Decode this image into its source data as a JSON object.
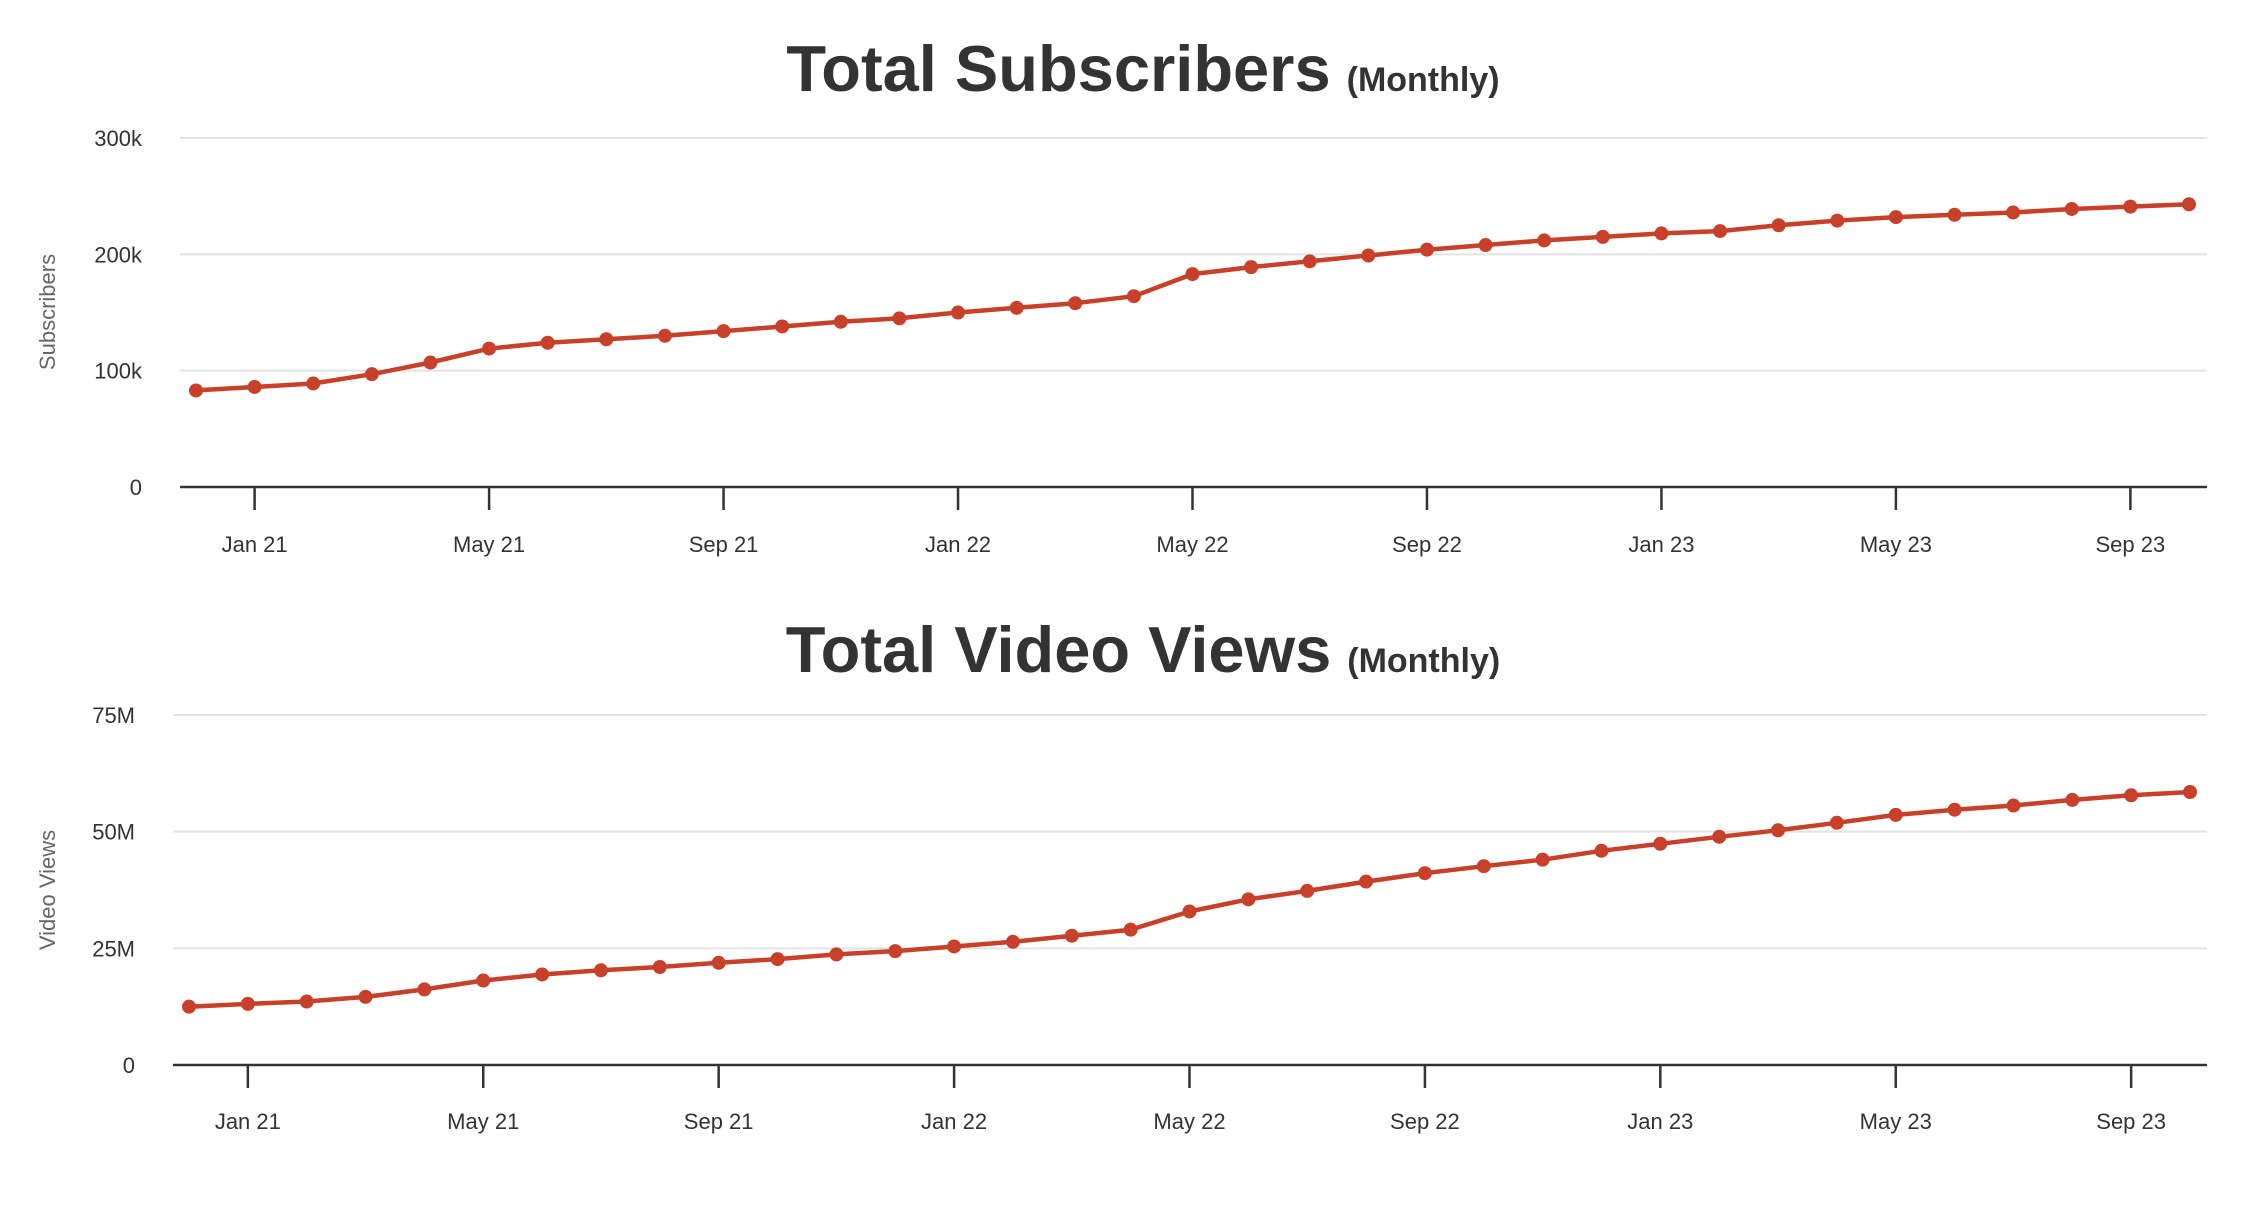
{
  "colors": {
    "series": "#c8402a",
    "grid": "#e3e3e3",
    "axis": "#333333",
    "text": "#333333"
  },
  "chart_data": [
    {
      "type": "line",
      "title": "Total Subscribers",
      "subtitle": "(Monthly)",
      "xlabel": "",
      "ylabel": "Subscribers",
      "x_ticks": [
        "Jan 21",
        "May 21",
        "Sep 21",
        "Jan 22",
        "May 22",
        "Sep 22",
        "Jan 23",
        "May 23",
        "Sep 23"
      ],
      "y_ticks": [
        {
          "value": 0,
          "label": "0"
        },
        {
          "value": 100000,
          "label": "100k"
        },
        {
          "value": 200000,
          "label": "200k"
        },
        {
          "value": 300000,
          "label": "300k"
        }
      ],
      "ylim": [
        0,
        300000
      ],
      "grid": true,
      "legend": "none",
      "series": [
        {
          "x": [
            "2020-12",
            "2021-01",
            "2021-02",
            "2021-03",
            "2021-04",
            "2021-05",
            "2021-06",
            "2021-07",
            "2021-08",
            "2021-09",
            "2021-10",
            "2021-11",
            "2021-12",
            "2022-01",
            "2022-02",
            "2022-03",
            "2022-04",
            "2022-05",
            "2022-06",
            "2022-07",
            "2022-08",
            "2022-09",
            "2022-10",
            "2022-11",
            "2022-12",
            "2023-01",
            "2023-02",
            "2023-03",
            "2023-04",
            "2023-05",
            "2023-06",
            "2023-07",
            "2023-08",
            "2023-09",
            "2023-10"
          ],
          "values": [
            83000,
            86000,
            89000,
            97000,
            107000,
            119000,
            124000,
            127000,
            130000,
            134000,
            138000,
            142000,
            145000,
            150000,
            154000,
            158000,
            164000,
            183000,
            189000,
            194000,
            199000,
            204000,
            208000,
            212000,
            215000,
            218000,
            220000,
            225000,
            229000,
            232000,
            234000,
            236000,
            239000,
            241000,
            243000
          ]
        }
      ]
    },
    {
      "type": "line",
      "title": "Total Video Views",
      "subtitle": "(Monthly)",
      "xlabel": "",
      "ylabel": "Video Views",
      "x_ticks": [
        "Jan 21",
        "May 21",
        "Sep 21",
        "Jan 22",
        "May 22",
        "Sep 22",
        "Jan 23",
        "May 23",
        "Sep 23"
      ],
      "y_ticks": [
        {
          "value": 0,
          "label": "0"
        },
        {
          "value": 25000000,
          "label": "25M"
        },
        {
          "value": 50000000,
          "label": "50M"
        },
        {
          "value": 75000000,
          "label": "75M"
        }
      ],
      "ylim": [
        0,
        75000000
      ],
      "grid": true,
      "legend": "none",
      "series": [
        {
          "x": [
            "2020-12",
            "2021-01",
            "2021-02",
            "2021-03",
            "2021-04",
            "2021-05",
            "2021-06",
            "2021-07",
            "2021-08",
            "2021-09",
            "2021-10",
            "2021-11",
            "2021-12",
            "2022-01",
            "2022-02",
            "2022-03",
            "2022-04",
            "2022-05",
            "2022-06",
            "2022-07",
            "2022-08",
            "2022-09",
            "2022-10",
            "2022-11",
            "2022-12",
            "2023-01",
            "2023-02",
            "2023-03",
            "2023-04",
            "2023-05",
            "2023-06",
            "2023-07",
            "2023-08",
            "2023-09",
            "2023-10"
          ],
          "values": [
            12500000,
            13100000,
            13600000,
            14600000,
            16200000,
            18100000,
            19400000,
            20300000,
            21000000,
            21900000,
            22700000,
            23700000,
            24400000,
            25400000,
            26400000,
            27700000,
            29000000,
            32900000,
            35500000,
            37300000,
            39300000,
            41100000,
            42600000,
            44000000,
            45900000,
            47400000,
            48900000,
            50300000,
            51900000,
            53600000,
            54700000,
            55600000,
            56800000,
            57800000,
            58500000
          ]
        }
      ]
    }
  ]
}
